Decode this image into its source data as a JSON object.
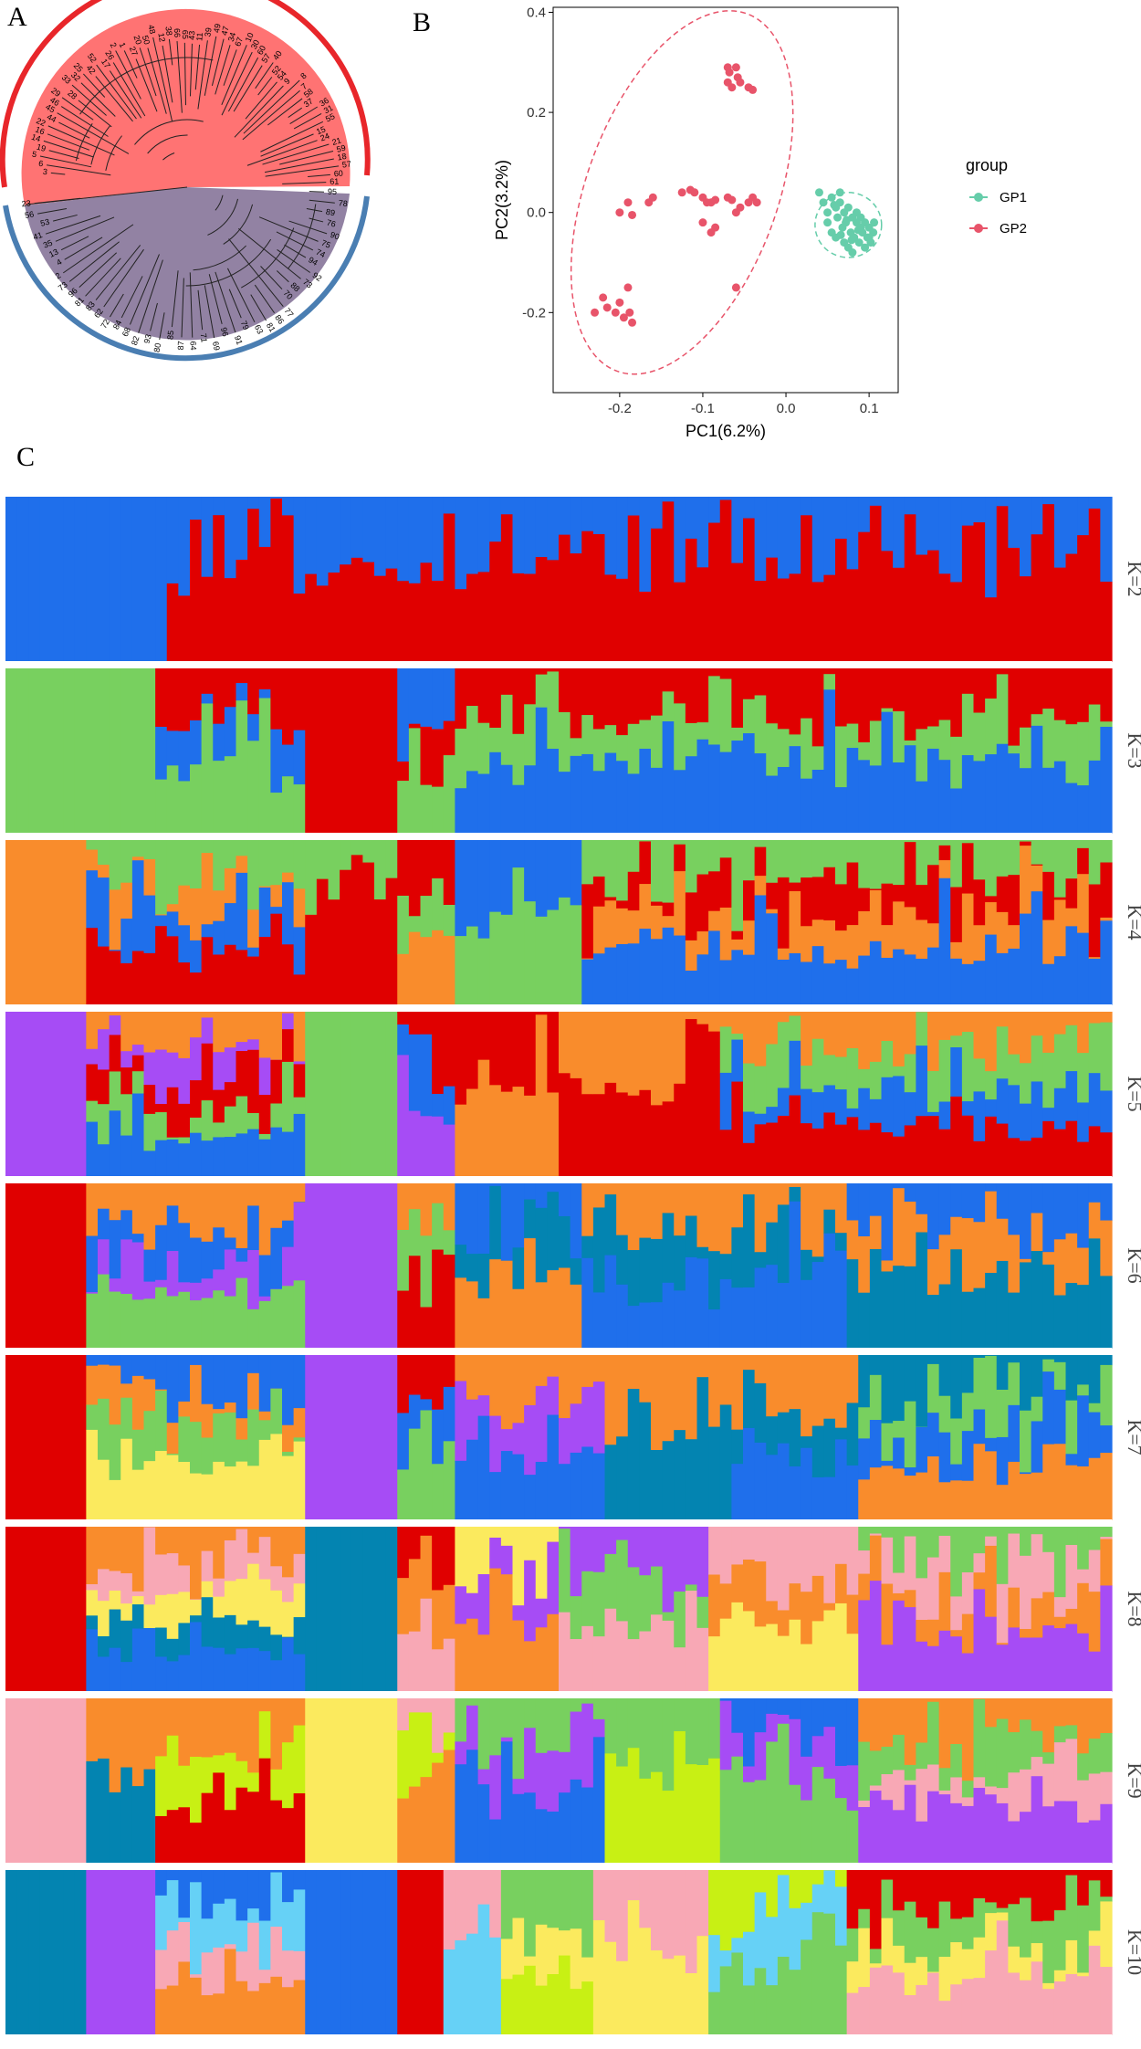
{
  "panels": {
    "a": "A",
    "b": "B",
    "c": "C"
  },
  "colors": {
    "gp1": "#66CDAA",
    "gp2": "#E8546A",
    "tree_red": "#FF6B6B",
    "tree_ring_red": "#E8262A",
    "tree_purple": "#8C7B9E",
    "tree_ring_blue": "#4A7EB2",
    "red": "#E00000",
    "blue": "#1F6FEB",
    "green": "#78D05F",
    "orange": "#F98C2C",
    "purple": "#A64CF5",
    "teal": "#0384B1",
    "yellow": "#FBEA5E",
    "pink": "#F8A8B5",
    "lime": "#C8F014",
    "sky": "#66D1F6"
  },
  "tree": {
    "tip_labels_top": [
      "3",
      "6",
      "5",
      "19",
      "14",
      "16",
      "22",
      "44",
      "45",
      "46",
      "29",
      "28",
      "33",
      "32",
      "25",
      "42",
      "52",
      "17",
      "26",
      "2",
      "1",
      "27",
      "20",
      "50",
      "48",
      "12",
      "38",
      "66",
      "65",
      "43",
      "11",
      "39",
      "49",
      "47",
      "34",
      "67",
      "10",
      "30",
      "60",
      "57",
      "40",
      "52",
      "54",
      "9",
      "8",
      "7",
      "58",
      "37",
      "36",
      "31",
      "55",
      "15",
      "24",
      "21",
      "59",
      "18",
      "57",
      "60",
      "61"
    ],
    "tip_labels_bottom": [
      "95",
      "78",
      "89",
      "76",
      "90",
      "75",
      "74",
      "94",
      "92",
      "73",
      "88",
      "70",
      "77",
      "86",
      "81",
      "63",
      "79",
      "91",
      "96",
      "69",
      "71",
      "64",
      "87",
      "85",
      "80",
      "93",
      "82",
      "68",
      "84",
      "72",
      "62",
      "83",
      "81",
      "96",
      "73",
      "2",
      "4",
      "13",
      "35",
      "41",
      "53",
      "56",
      "23"
    ]
  },
  "chart_data": [
    {
      "panel": "B",
      "type": "scatter",
      "xlabel": "PC1(6.2%)",
      "ylabel": "PC2(3.2%)",
      "xlim": [
        -0.28,
        0.135
      ],
      "ylim": [
        -0.36,
        0.41
      ],
      "xticks": [
        "-0.2",
        "-0.1",
        "0.0",
        "0.1"
      ],
      "xtick_values": [
        -0.2,
        -0.1,
        0.0,
        0.1
      ],
      "yticks": [
        "-0.2",
        "0.0",
        "0.2",
        "0.4"
      ],
      "ytick_values": [
        -0.2,
        0.0,
        0.2,
        0.4
      ],
      "grid": false,
      "legend_title": "group",
      "legend_position": "right",
      "series": [
        {
          "name": "GP1",
          "color": "#66CDAA",
          "ellipse": {
            "cx": 0.075,
            "cy": -0.025,
            "rx": 0.04,
            "ry": 0.065
          },
          "points": [
            [
              0.04,
              0.04
            ],
            [
              0.045,
              0.02
            ],
            [
              0.05,
              0.0
            ],
            [
              0.055,
              0.03
            ],
            [
              0.06,
              0.01
            ],
            [
              0.062,
              -0.01
            ],
            [
              0.065,
              0.02
            ],
            [
              0.068,
              -0.03
            ],
            [
              0.07,
              0.0
            ],
            [
              0.072,
              -0.02
            ],
            [
              0.075,
              0.01
            ],
            [
              0.078,
              -0.04
            ],
            [
              0.08,
              -0.01
            ],
            [
              0.082,
              -0.05
            ],
            [
              0.085,
              -0.02
            ],
            [
              0.088,
              -0.06
            ],
            [
              0.09,
              -0.03
            ],
            [
              0.092,
              -0.04
            ],
            [
              0.095,
              -0.02
            ],
            [
              0.098,
              -0.05
            ],
            [
              0.1,
              -0.03
            ],
            [
              0.102,
              -0.06
            ],
            [
              0.105,
              -0.04
            ],
            [
              0.07,
              -0.06
            ],
            [
              0.075,
              -0.07
            ],
            [
              0.08,
              -0.08
            ],
            [
              0.06,
              -0.05
            ],
            [
              0.055,
              -0.04
            ],
            [
              0.05,
              -0.02
            ],
            [
              0.065,
              0.04
            ],
            [
              0.085,
              0.0
            ],
            [
              0.09,
              -0.01
            ],
            [
              0.095,
              -0.07
            ],
            [
              0.1,
              -0.05
            ],
            [
              0.106,
              -0.02
            ],
            [
              0.058,
              0.015
            ],
            [
              0.073,
              -0.015
            ],
            [
              0.087,
              -0.035
            ],
            [
              0.066,
              -0.045
            ],
            [
              0.079,
              -0.055
            ]
          ]
        },
        {
          "name": "GP2",
          "color": "#E8546A",
          "ellipse": {
            "cx": -0.125,
            "cy": 0.04,
            "rx": 0.115,
            "ry": 0.38,
            "angle": 20
          },
          "points": [
            [
              -0.07,
              0.29
            ],
            [
              -0.068,
              0.28
            ],
            [
              -0.06,
              0.29
            ],
            [
              -0.058,
              0.27
            ],
            [
              -0.065,
              0.25
            ],
            [
              -0.055,
              0.26
            ],
            [
              -0.045,
              0.25
            ],
            [
              -0.04,
              0.245
            ],
            [
              -0.07,
              0.26
            ],
            [
              -0.19,
              0.02
            ],
            [
              -0.2,
              0.0
            ],
            [
              -0.185,
              -0.005
            ],
            [
              -0.165,
              0.02
            ],
            [
              -0.16,
              0.03
            ],
            [
              -0.125,
              0.04
            ],
            [
              -0.115,
              0.045
            ],
            [
              -0.11,
              0.04
            ],
            [
              -0.1,
              0.03
            ],
            [
              -0.095,
              0.02
            ],
            [
              -0.09,
              0.02
            ],
            [
              -0.085,
              0.025
            ],
            [
              -0.07,
              0.03
            ],
            [
              -0.065,
              0.025
            ],
            [
              -0.06,
              0.0
            ],
            [
              -0.055,
              0.01
            ],
            [
              -0.045,
              0.02
            ],
            [
              -0.04,
              0.03
            ],
            [
              -0.035,
              0.02
            ],
            [
              -0.1,
              -0.02
            ],
            [
              -0.09,
              -0.04
            ],
            [
              -0.085,
              -0.03
            ],
            [
              -0.06,
              -0.15
            ],
            [
              -0.22,
              -0.17
            ],
            [
              -0.215,
              -0.19
            ],
            [
              -0.205,
              -0.2
            ],
            [
              -0.2,
              -0.18
            ],
            [
              -0.195,
              -0.21
            ],
            [
              -0.19,
              -0.15
            ],
            [
              -0.188,
              -0.2
            ],
            [
              -0.185,
              -0.22
            ],
            [
              -0.23,
              -0.2
            ]
          ]
        }
      ]
    },
    {
      "panel": "C",
      "type": "bar",
      "title": "",
      "stacked": true,
      "n_individuals": 96,
      "rows": [
        {
          "label": "K=2"
        },
        {
          "label": "K=3"
        },
        {
          "label": "K=4"
        },
        {
          "label": "K=5"
        },
        {
          "label": "K=6"
        },
        {
          "label": "K=7"
        },
        {
          "label": "K=8"
        },
        {
          "label": "K=9"
        },
        {
          "label": "K=10"
        }
      ]
    }
  ]
}
